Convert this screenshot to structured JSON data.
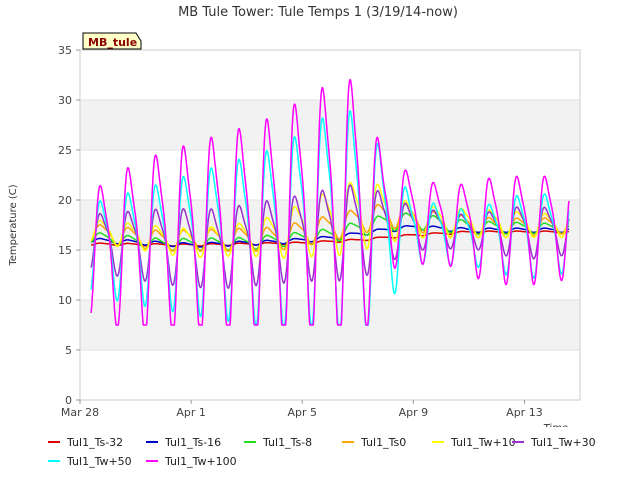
{
  "chart_data": {
    "type": "line",
    "title": "MB Tule Tower: Tule Temps 1 (3/19/14-now)",
    "xlabel": "Time",
    "ylabel": "Temperature (C)",
    "ylim": [
      0,
      35
    ],
    "xlim_days": [
      0,
      18
    ],
    "x_ticks": [
      {
        "day": 0,
        "label": "Mar 28"
      },
      {
        "day": 4,
        "label": "Apr 1"
      },
      {
        "day": 8,
        "label": "Apr 5"
      },
      {
        "day": 12,
        "label": "Apr 9"
      },
      {
        "day": 16,
        "label": "Apr 13"
      }
    ],
    "y_ticks": [
      0,
      5,
      10,
      15,
      20,
      25,
      30,
      35
    ],
    "badge": "MB_tule",
    "legend_position": "bottom",
    "series": [
      {
        "name": "Tul1_Ts-32",
        "color": "#dd0000",
        "base": [
          [
            0.4,
            15.6
          ],
          [
            4,
            15.5
          ],
          [
            8,
            15.7
          ],
          [
            10,
            16.0
          ],
          [
            12,
            16.5
          ],
          [
            14,
            16.8
          ],
          [
            17.5,
            16.8
          ]
        ],
        "amp": [
          [
            0,
            0.1
          ],
          [
            18,
            0.1
          ]
        ]
      },
      {
        "name": "Tul1_Ts-16",
        "color": "#0000cc",
        "base": [
          [
            0.4,
            16.0
          ],
          [
            4,
            15.5
          ],
          [
            7,
            15.8
          ],
          [
            9,
            16.2
          ],
          [
            11,
            17.0
          ],
          [
            12,
            17.3
          ],
          [
            14,
            17.0
          ],
          [
            17.5,
            17.0
          ]
        ],
        "amp": [
          [
            0,
            0.2
          ],
          [
            18,
            0.2
          ]
        ]
      },
      {
        "name": "Tul1_Ts-8",
        "color": "#22dd22",
        "base": [
          [
            0.4,
            16.3
          ],
          [
            3,
            15.6
          ],
          [
            6,
            15.7
          ],
          [
            9,
            16.5
          ],
          [
            11,
            17.8
          ],
          [
            12,
            18.0
          ],
          [
            14,
            17.3
          ],
          [
            17.5,
            17.2
          ]
        ],
        "amp": [
          [
            0,
            0.5
          ],
          [
            8,
            0.6
          ],
          [
            11,
            0.8
          ],
          [
            18,
            0.4
          ]
        ]
      },
      {
        "name": "Tul1_Ts0",
        "color": "#ffa500",
        "base": [
          [
            0.4,
            16.8
          ],
          [
            3,
            16.0
          ],
          [
            7,
            16.2
          ],
          [
            9,
            17.3
          ],
          [
            10.5,
            18.3
          ],
          [
            11.5,
            18.6
          ],
          [
            13,
            17.6
          ],
          [
            15,
            17.3
          ],
          [
            17.5,
            17.5
          ]
        ],
        "amp": [
          [
            0,
            0.8
          ],
          [
            9,
            1.2
          ],
          [
            11,
            1.2
          ],
          [
            18,
            0.7
          ]
        ]
      },
      {
        "name": "Tul1_Tw+10",
        "color": "#ffff00",
        "base": [
          [
            0.4,
            17.0
          ],
          [
            4,
            15.8
          ],
          [
            7,
            16.5
          ],
          [
            9,
            18.0
          ],
          [
            10.5,
            19.0
          ],
          [
            12,
            18.0
          ],
          [
            17.5,
            17.5
          ]
        ],
        "amp": [
          [
            0,
            1.0
          ],
          [
            6,
            1.5
          ],
          [
            10,
            3.5
          ],
          [
            12,
            1.5
          ],
          [
            18,
            1.0
          ]
        ]
      },
      {
        "name": "Tul1_Tw+30",
        "color": "#9932cc",
        "base": [
          [
            0.4,
            16.0
          ],
          [
            5,
            15.5
          ],
          [
            9,
            17.0
          ],
          [
            11,
            17.5
          ],
          [
            14,
            17.0
          ],
          [
            17.5,
            17.0
          ]
        ],
        "amp": [
          [
            0,
            2.5
          ],
          [
            3,
            3.5
          ],
          [
            8,
            4.0
          ],
          [
            10,
            4.5
          ],
          [
            12,
            2.0
          ],
          [
            14,
            1.5
          ],
          [
            16,
            2.5
          ],
          [
            18,
            2.0
          ]
        ]
      },
      {
        "name": "Tul1_Tw+50",
        "color": "#00ffff",
        "base": [
          [
            0.4,
            15.5
          ],
          [
            3,
            16.0
          ],
          [
            7,
            17.0
          ],
          [
            9,
            19.0
          ],
          [
            11,
            17.5
          ],
          [
            14,
            16.5
          ],
          [
            17.5,
            17.0
          ]
        ],
        "amp": [
          [
            0,
            4.0
          ],
          [
            4,
            6.5
          ],
          [
            8,
            9.0
          ],
          [
            10,
            11.0
          ],
          [
            12,
            3.0
          ],
          [
            14,
            2.5
          ],
          [
            16,
            4.0
          ],
          [
            18,
            3.5
          ]
        ]
      },
      {
        "name": "Tul1_Tw+100",
        "color": "#ff00ff",
        "base": [
          [
            0.4,
            15.0
          ],
          [
            3,
            16.5
          ],
          [
            7,
            18.0
          ],
          [
            9,
            20.0
          ],
          [
            11,
            19.0
          ],
          [
            14,
            17.5
          ],
          [
            17.5,
            17.5
          ]
        ],
        "amp": [
          [
            0,
            5.5
          ],
          [
            2,
            8.0
          ],
          [
            6,
            10.0
          ],
          [
            9,
            12.0
          ],
          [
            10,
            13.0
          ],
          [
            11,
            5.0
          ],
          [
            13,
            3.5
          ],
          [
            15,
            5.0
          ],
          [
            17,
            5.0
          ],
          [
            18,
            4.0
          ]
        ]
      }
    ]
  }
}
